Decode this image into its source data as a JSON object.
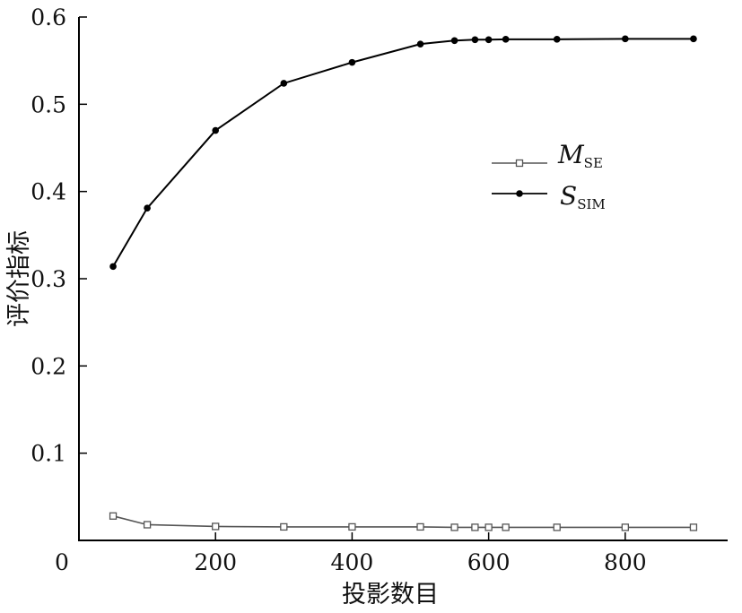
{
  "chart_data": {
    "type": "line",
    "xlabel": "投影数目",
    "ylabel": "评价指标",
    "xlim": [
      0,
      950
    ],
    "ylim": [
      0,
      0.6
    ],
    "x_ticks": [
      200,
      400,
      600,
      800
    ],
    "x_tick_labels": [
      "200",
      "400",
      "600",
      "800"
    ],
    "y_ticks": [
      0.1,
      0.2,
      0.3,
      0.4,
      0.5,
      0.6
    ],
    "y_tick_labels": [
      "0.1",
      "0.2",
      "0.3",
      "0.4",
      "0.5",
      "0.6"
    ],
    "origin_label": "0",
    "grid": false,
    "legend_position": "upper-right",
    "series": [
      {
        "key": "mse",
        "name_main": "M",
        "name_sub": "SE",
        "marker": "open-square",
        "color": "#555555",
        "x": [
          50,
          100,
          200,
          300,
          400,
          500,
          550,
          580,
          600,
          625,
          700,
          800,
          900
        ],
        "values": [
          0.028,
          0.018,
          0.016,
          0.0155,
          0.0155,
          0.0155,
          0.015,
          0.015,
          0.015,
          0.015,
          0.015,
          0.015,
          0.015
        ]
      },
      {
        "key": "ssim",
        "name_main": "S",
        "name_sub": "SIM",
        "marker": "filled-circle",
        "color": "#000000",
        "x": [
          50,
          100,
          200,
          300,
          400,
          500,
          550,
          580,
          600,
          625,
          700,
          800,
          900
        ],
        "values": [
          0.314,
          0.381,
          0.47,
          0.524,
          0.548,
          0.569,
          0.573,
          0.574,
          0.574,
          0.5745,
          0.5745,
          0.575,
          0.575
        ]
      }
    ]
  }
}
